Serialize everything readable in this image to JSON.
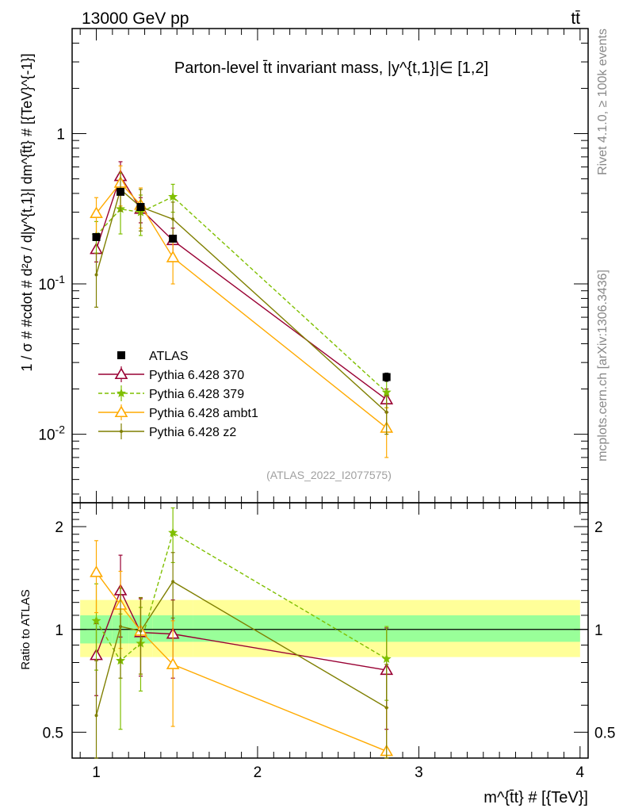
{
  "header": {
    "energy": "13000 GeV pp",
    "process": "tt̄"
  },
  "side_labels": {
    "rivet": "Rivet 4.1.0, ≥ 100k events",
    "mcplots": "mcplots.cern.ch [arXiv:1306.3436]"
  },
  "chart_data": {
    "type": "line",
    "title": "Parton-level t̄t invariant mass, |y^{t,1}|∈ [1,2]",
    "analysis_tag": "(ATLAS_2022_I2077575)",
    "xlabel": "m^{t̄t} # [{TeV}]",
    "ylabel": "1 / σ # #cdot # d²σ / d|y^{t,1}| dm^{t̄t} # [{TeV}^{-1}]",
    "ratio_ylabel": "Ratio to ATLAS",
    "x_range": [
      0.85,
      4.05
    ],
    "y_range": [
      0.0035,
      5.0
    ],
    "y_scale": "log",
    "ratio_range": [
      0.42,
      2.35
    ],
    "ratio_scale": "log",
    "x_ticks": [
      "1",
      "2",
      "3",
      "4"
    ],
    "y_ticks": [
      "10^-2",
      "10^-1",
      "1"
    ],
    "ratio_ticks": [
      "0.5",
      "1",
      "2"
    ],
    "x": [
      1.0,
      1.15,
      1.275,
      1.475,
      2.8
    ],
    "data": {
      "name": "ATLAS",
      "color": "#000000",
      "values": [
        0.205,
        0.41,
        0.325,
        0.2,
        0.024
      ],
      "errors": [
        0.01,
        0.018,
        0.015,
        0.01,
        0.0015
      ]
    },
    "ratio_band": {
      "x_edges": [
        0.9,
        1.1,
        1.2,
        1.35,
        1.6,
        4.0
      ],
      "green_lo": [
        0.91,
        0.91,
        0.91,
        0.92,
        0.92
      ],
      "green_hi": [
        1.1,
        1.1,
        1.1,
        1.1,
        1.1
      ],
      "yellow_lo": [
        0.83,
        0.83,
        0.83,
        0.83,
        0.83
      ],
      "yellow_hi": [
        1.22,
        1.22,
        1.22,
        1.22,
        1.22
      ],
      "green_color": "#99ff99",
      "yellow_color": "#ffff99"
    },
    "series": [
      {
        "name": "Pythia 6.428 370",
        "color": "#990033",
        "style": "solid",
        "marker": "triangle-open",
        "values": [
          0.17,
          0.52,
          0.315,
          0.195,
          0.017
        ],
        "errors": [
          0.03,
          0.13,
          0.06,
          0.04,
          0.003
        ],
        "ratio": [
          0.84,
          1.3,
          0.98,
          0.97,
          0.76
        ],
        "ratio_errors": [
          0.2,
          0.35,
          0.25,
          0.25,
          0.25
        ]
      },
      {
        "name": "Pythia 6.428 379",
        "color": "#7fbf00",
        "style": "dashed",
        "marker": "star",
        "values": [
          0.21,
          0.315,
          0.3,
          0.38,
          0.019
        ],
        "errors": [
          0.05,
          0.1,
          0.09,
          0.08,
          0.004
        ],
        "ratio": [
          1.06,
          0.81,
          0.91,
          1.92,
          0.82
        ],
        "ratio_errors": [
          0.3,
          0.3,
          0.25,
          0.35,
          0.2
        ]
      },
      {
        "name": "Pythia 6.428 ambt1",
        "color": "#ffaa00",
        "style": "solid",
        "marker": "triangle-open",
        "values": [
          0.295,
          0.47,
          0.335,
          0.15,
          0.011
        ],
        "errors": [
          0.08,
          0.14,
          0.1,
          0.05,
          0.004
        ],
        "ratio": [
          1.47,
          1.18,
          0.99,
          0.79,
          0.44
        ],
        "ratio_errors": [
          0.35,
          0.3,
          0.25,
          0.27,
          0.15
        ]
      },
      {
        "name": "Pythia 6.428 z2",
        "color": "#7f7f00",
        "style": "solid",
        "marker": "dot",
        "values": [
          0.115,
          0.425,
          0.325,
          0.27,
          0.014
        ],
        "errors": [
          0.045,
          0.12,
          0.1,
          0.08,
          0.004
        ],
        "ratio": [
          0.56,
          1.02,
          0.99,
          1.38,
          0.59
        ],
        "ratio_errors": [
          0.25,
          0.3,
          0.25,
          0.3,
          0.2
        ]
      }
    ]
  }
}
